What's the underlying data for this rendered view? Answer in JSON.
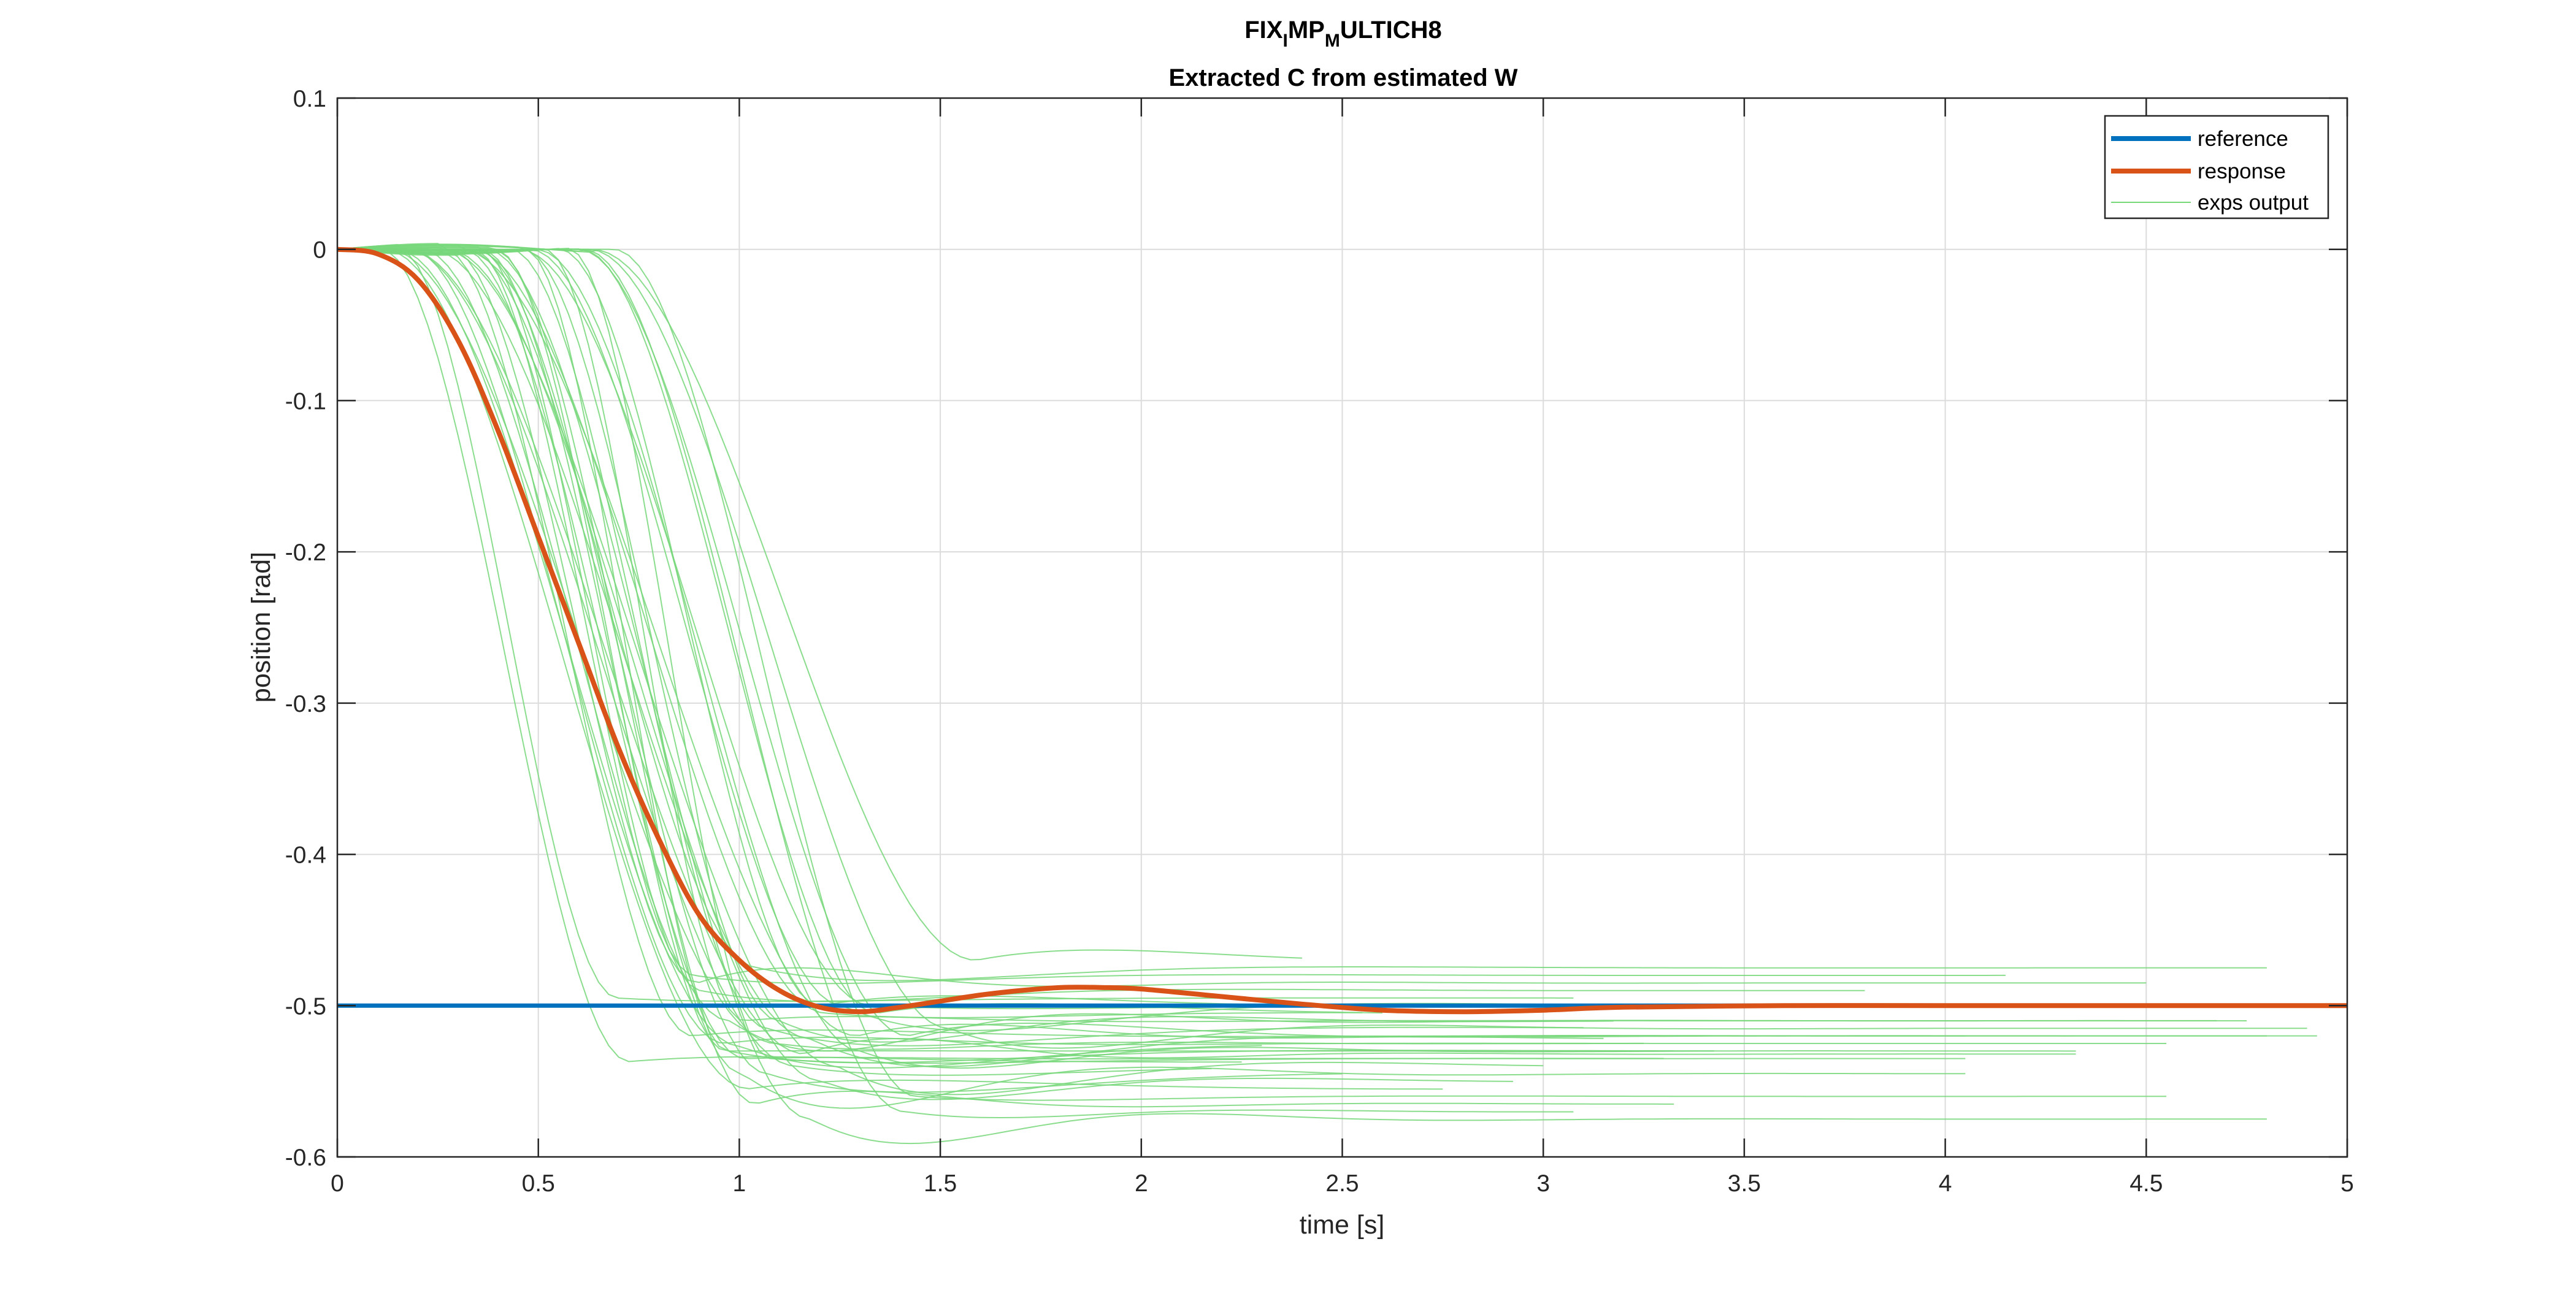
{
  "chart_data": {
    "type": "line",
    "title_parts": [
      {
        "text": "FIX",
        "sub": false
      },
      {
        "text": "I",
        "sub": true
      },
      {
        "text": "MP",
        "sub": false
      },
      {
        "text": "M",
        "sub": true
      },
      {
        "text": "ULTICH8",
        "sub": false
      }
    ],
    "subtitle": "Extracted C from estimated W",
    "xlabel": "time [s]",
    "ylabel": "position [rad]",
    "xlim": [
      0,
      5
    ],
    "ylim": [
      -0.6,
      0.1
    ],
    "xticks": [
      0,
      0.5,
      1,
      1.5,
      2,
      2.5,
      3,
      3.5,
      4,
      4.5,
      5
    ],
    "yticks": [
      0.1,
      0,
      -0.1,
      -0.2,
      -0.3,
      -0.4,
      -0.5,
      -0.6
    ],
    "xtick_labels": [
      "0",
      "0.5",
      "1",
      "1.5",
      "2",
      "2.5",
      "3",
      "3.5",
      "4",
      "4.5",
      "5"
    ],
    "ytick_labels": [
      "0.1",
      "0",
      "-0.1",
      "-0.2",
      "-0.3",
      "-0.4",
      "-0.5",
      "-0.6"
    ],
    "grid": true,
    "legend_position": "top-right",
    "colors": {
      "reference": "#0072BD",
      "response": "#D95319",
      "exps": "#77D77A"
    },
    "series": [
      {
        "name": "reference",
        "x": [
          0,
          5
        ],
        "y": [
          -0.5,
          -0.5
        ]
      },
      {
        "name": "response",
        "x": [
          0,
          0.1,
          0.2,
          0.3,
          0.4,
          0.5,
          0.6,
          0.7,
          0.8,
          0.9,
          1.0,
          1.1,
          1.2,
          1.3,
          1.4,
          1.5,
          1.6,
          1.7,
          1.8,
          1.9,
          2.0,
          2.2,
          2.4,
          2.6,
          2.8,
          3.0,
          3.2,
          3.6,
          4.0,
          4.5,
          5.0
        ],
        "y": [
          0,
          -0.003,
          -0.02,
          -0.06,
          -0.12,
          -0.19,
          -0.26,
          -0.33,
          -0.39,
          -0.44,
          -0.47,
          -0.49,
          -0.501,
          -0.504,
          -0.501,
          -0.497,
          -0.493,
          -0.49,
          -0.488,
          -0.488,
          -0.489,
          -0.494,
          -0.499,
          -0.503,
          -0.504,
          -0.503,
          -0.501,
          -0.5,
          -0.5,
          -0.5,
          -0.5
        ]
      },
      {
        "name": "exps output",
        "count": 40,
        "delay_range": [
          0.1,
          0.7
        ],
        "duration_range": [
          0.45,
          1.0
        ],
        "final_values": [
          -0.47,
          -0.475,
          -0.48,
          -0.485,
          -0.49,
          -0.495,
          -0.5,
          -0.505,
          -0.51,
          -0.515,
          -0.52,
          -0.522,
          -0.525,
          -0.527,
          -0.53,
          -0.532,
          -0.535,
          -0.537,
          -0.54,
          -0.545,
          -0.55,
          -0.555,
          -0.56,
          -0.565,
          -0.57,
          -0.575,
          -0.5,
          -0.51,
          -0.52,
          -0.53,
          -0.54,
          -0.525,
          -0.515,
          -0.505,
          -0.535,
          -0.545,
          -0.52,
          -0.53,
          -0.51,
          -0.5
        ]
      }
    ]
  }
}
